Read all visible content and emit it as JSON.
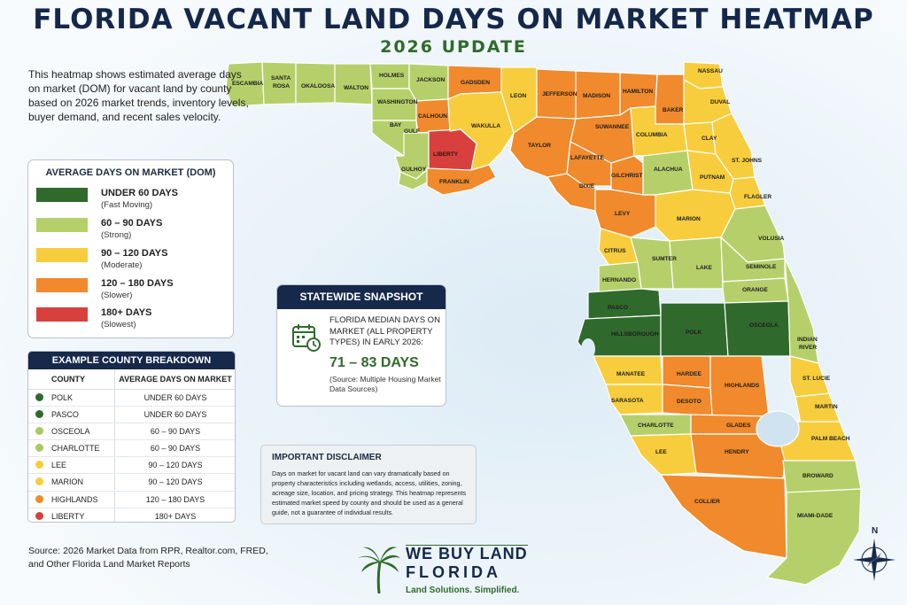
{
  "title": "FLORIDA VACANT LAND DAYS ON MARKET HEATMAP",
  "subtitle": "2026 UPDATE",
  "intro": "This heatmap shows estimated average days on market (DOM) for vacant land by county based on 2026 market trends, inventory levels, buyer demand, and recent sales velocity.",
  "legend": {
    "title": "AVERAGE DAYS ON MARKET (DOM)",
    "items": [
      {
        "label": "UNDER 60 DAYS",
        "sub": "(Fast Moving)",
        "color": "#2f6a2c"
      },
      {
        "label": "60 – 90 DAYS",
        "sub": "(Strong)",
        "color": "#b5d06a"
      },
      {
        "label": "90 – 120 DAYS",
        "sub": "(Moderate)",
        "color": "#f7cd3d"
      },
      {
        "label": "120 – 180 DAYS",
        "sub": "(Slower)",
        "color": "#f08a2c"
      },
      {
        "label": "180+ DAYS",
        "sub": "(Slowest)",
        "color": "#d8403d"
      }
    ]
  },
  "breakdown": {
    "title": "EXAMPLE COUNTY BREAKDOWN",
    "col_county": "COUNTY",
    "col_dom": "AVERAGE DAYS ON MARKET",
    "rows": [
      {
        "county": "POLK",
        "dom": "UNDER 60 DAYS",
        "color": "#2f6a2c"
      },
      {
        "county": "PASCO",
        "dom": "UNDER 60 DAYS",
        "color": "#2f6a2c"
      },
      {
        "county": "OSCEOLA",
        "dom": "60 – 90 DAYS",
        "color": "#a8c964"
      },
      {
        "county": "CHARLOTTE",
        "dom": "60 – 90 DAYS",
        "color": "#a8c964"
      },
      {
        "county": "LEE",
        "dom": "90 – 120 DAYS",
        "color": "#f7cd3d"
      },
      {
        "county": "MARION",
        "dom": "90 – 120 DAYS",
        "color": "#f7cd3d"
      },
      {
        "county": "HIGHLANDS",
        "dom": "120 – 180 DAYS",
        "color": "#f08a2c"
      },
      {
        "county": "LIBERTY",
        "dom": "180+ DAYS",
        "color": "#d8403d"
      }
    ]
  },
  "source": "Source: 2026 Market Data from RPR, Realtor.com, FRED, and Other Florida Land Market Reports",
  "snapshot": {
    "title": "STATEWIDE SNAPSHOT",
    "text": "FLORIDA MEDIAN DAYS ON MARKET (ALL PROPERTY TYPES) IN EARLY 2026:",
    "value": "71 – 83 DAYS",
    "note": "(Source: Multiple Housing Market Data Sources)"
  },
  "disclaimer": {
    "title": "IMPORTANT DISCLAIMER",
    "text": "Days on market for vacant land can vary dramatically based on property characteristics including wetlands, access, utilities, zoning, acreage size, location, and pricing strategy. This heatmap represents estimated market speed by county and should be used as a general guide, not a guarantee of individual results."
  },
  "logo": {
    "line1": "WE BUY LAND",
    "line2": "FLORIDA",
    "tagline": "Land Solutions. Simplified."
  },
  "compass_label": "N",
  "colors": {
    "fast": "#2f6a2c",
    "strong": "#b5d06a",
    "moderate": "#f7cd3d",
    "slower": "#f08a2c",
    "slowest": "#d8403d",
    "navy": "#16294a"
  },
  "counties": {
    "escambia": "ESCAMBIA",
    "santa_rosa_1": "SANTA",
    "santa_rosa_2": "ROSA",
    "okaloosa": "OKALOOSA",
    "walton": "WALTON",
    "holmes": "HOLMES",
    "jackson": "JACKSON",
    "washington": "WASHINGTON",
    "bay": "BAY",
    "calhoun": "CALHOUN",
    "gadsden": "GADSDEN",
    "leon": "LEON",
    "jefferson": "JEFFERSON",
    "madison": "MADISON",
    "hamilton": "HAMILTON",
    "nassau": "NASSAU",
    "duval": "DUVAL",
    "baker": "BAKER",
    "gulf": "GULF",
    "liberty": "LIBERTY",
    "wakulla": "WAKULLA",
    "taylor": "TAYLOR",
    "suwannee": "SUWANNEE",
    "columbia": "COLUMBIA",
    "clay": "CLAY",
    "st_johns": "ST. JOHNS",
    "gulhoy": "GULHOY",
    "franklin": "FRANKLIN",
    "lafayette": "LAFAYETTE",
    "dixie": "DIXIE",
    "gilchrist": "GILCHRIST",
    "alachua": "ALACHUA",
    "putnam": "PUTNAM",
    "flagler": "FLAGLER",
    "levy": "LEVY",
    "marion": "MARION",
    "volusia": "VOLUSIA",
    "citrus": "CITRUS",
    "sumter": "SUMTER",
    "lake": "LAKE",
    "seminole": "SEMINOLE",
    "hernando": "HERNANDO",
    "orange": "ORANGE",
    "pasco": "PASCO",
    "hillsborough": "HILLSBOROUGH",
    "polk": "POLK",
    "osceola": "OSCEOLA",
    "indian_river_1": "INDIAN",
    "indian_river_2": "RIVER",
    "manatee": "MANATEE",
    "hardee": "HARDEE",
    "highlands": "HIGHLANDS",
    "st_lucie": "ST. LUCIE",
    "sarasota": "SARASOTA",
    "desoto": "DESOTO",
    "martin": "MARTIN",
    "charlotte": "CHARLOTTE",
    "glades": "GLADES",
    "palm_beach": "PALM BEACH",
    "lee": "LEE",
    "hendry": "HENDRY",
    "broward": "BROWARD",
    "collier": "COLLIER",
    "miami_dade": "MIAMI-DADE"
  }
}
